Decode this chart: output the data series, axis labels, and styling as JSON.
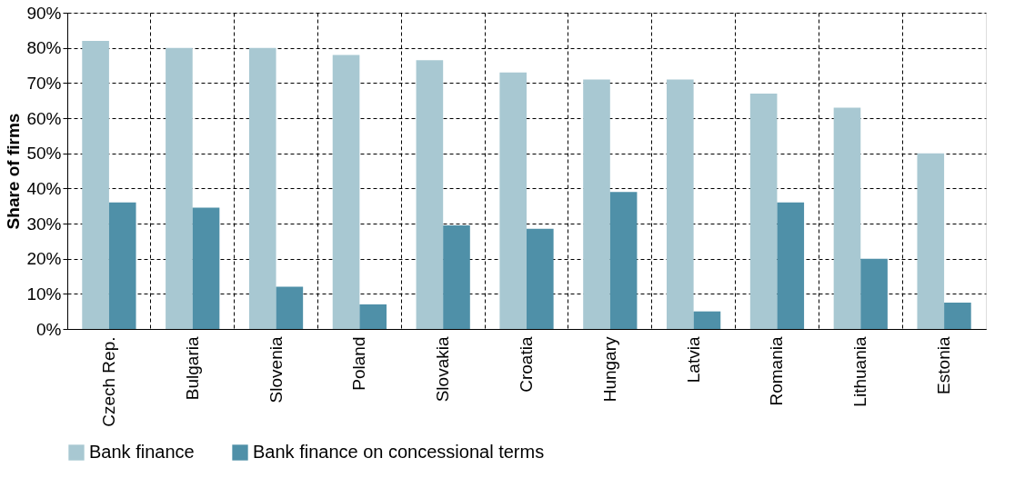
{
  "chart_data": {
    "type": "bar",
    "ylabel": "Share of firms",
    "categories": [
      "Czech Rep.",
      "Bulgaria",
      "Slovenia",
      "Poland",
      "Slovakia",
      "Croatia",
      "Hungary",
      "Latvia",
      "Romania",
      "Lithuania",
      "Estonia"
    ],
    "series": [
      {
        "name": "Bank finance",
        "color": "#a8c8d2",
        "values": [
          82,
          80,
          80,
          78,
          76.5,
          73,
          71,
          71,
          67,
          63,
          50
        ]
      },
      {
        "name": "Bank finance on concessional terms",
        "color": "#4f90a8",
        "values": [
          36,
          34.5,
          12,
          7,
          29.5,
          28.5,
          39,
          5,
          36,
          20,
          7.5
        ]
      }
    ],
    "ylim": [
      0,
      90
    ],
    "yticks": [
      {
        "value": 0,
        "label": "0%"
      },
      {
        "value": 10,
        "label": "10%"
      },
      {
        "value": 20,
        "label": "20%"
      },
      {
        "value": 30,
        "label": "30%"
      },
      {
        "value": 40,
        "label": "40%"
      },
      {
        "value": 50,
        "label": "50%"
      },
      {
        "value": 60,
        "label": "60%"
      },
      {
        "value": 70,
        "label": "70%"
      },
      {
        "value": 80,
        "label": "80%"
      },
      {
        "value": 90,
        "label": "90%"
      }
    ],
    "grid": true,
    "legend": "bottom"
  }
}
